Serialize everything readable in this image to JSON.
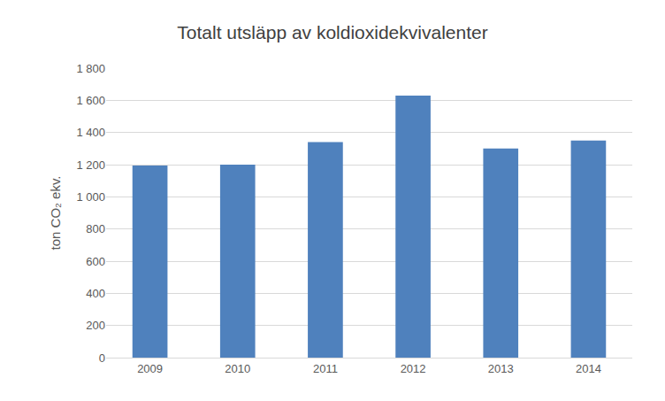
{
  "chart_data": {
    "type": "bar",
    "title": "Totalt utsläpp av koldioxidekvivalenter",
    "y_label": "ton CO₂ ekv.",
    "categories": [
      "2009",
      "2010",
      "2011",
      "2012",
      "2013",
      "2014"
    ],
    "values": [
      1195,
      1200,
      1340,
      1630,
      1300,
      1350
    ],
    "color": "#4f81bd",
    "ylim": [
      0,
      1800
    ],
    "yticks": [
      0,
      200,
      400,
      600,
      800,
      {
        "value": 1000,
        "label": "1 000"
      },
      {
        "value": 1200,
        "label": "1 200"
      },
      {
        "value": 1400,
        "label": "1 400"
      },
      {
        "value": 1600,
        "label": "1 600"
      },
      {
        "value": 1800,
        "label": "1 800"
      }
    ],
    "grid": true
  }
}
